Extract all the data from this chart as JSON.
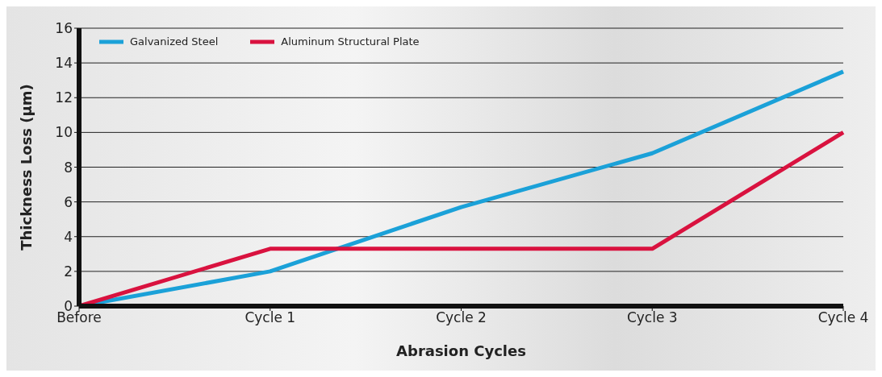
{
  "chart_data": {
    "type": "line",
    "xlabel": "Abrasion Cycles",
    "ylabel": "Thickness Loss (µm)",
    "categories": [
      "Before",
      "Cycle 1",
      "Cycle 2",
      "Cycle 3",
      "Cycle 4"
    ],
    "series": [
      {
        "name": "Galvanized Steel",
        "color": "#1ba1d8",
        "values": [
          0,
          2,
          5.7,
          8.8,
          13.5
        ]
      },
      {
        "name": "Aluminum Structural Plate",
        "color": "#d9123f",
        "values": [
          0,
          3.3,
          3.3,
          3.3,
          10
        ]
      }
    ],
    "ylim": [
      0,
      16
    ],
    "yticks": [
      0,
      2,
      4,
      6,
      8,
      10,
      12,
      14,
      16
    ],
    "grid": "y",
    "legend": "top left",
    "marker": "none",
    "line_style": "solid"
  }
}
